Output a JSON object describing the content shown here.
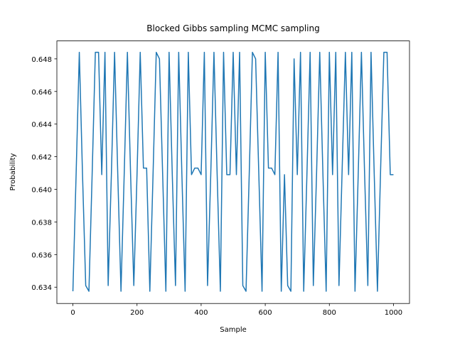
{
  "chart_data": {
    "type": "line",
    "title": "Blocked Gibbs sampling MCMC sampling",
    "x_label": "Sample",
    "y_label": "Probability",
    "xlim": [
      -50,
      1050
    ],
    "xticks": [
      0,
      200,
      400,
      600,
      800,
      1000
    ],
    "ylim": [
      0.633,
      0.6491
    ],
    "yticks": [
      0.634,
      0.636,
      0.638,
      {
        "value": 0.64,
        "label": "0.640"
      },
      0.642,
      0.644,
      0.646,
      0.648
    ],
    "x": [
      0,
      10,
      20,
      30,
      40,
      50,
      60,
      70,
      80,
      90,
      100,
      110,
      120,
      130,
      140,
      150,
      160,
      170,
      180,
      190,
      200,
      210,
      220,
      230,
      240,
      250,
      260,
      270,
      280,
      290,
      300,
      310,
      320,
      330,
      340,
      350,
      360,
      370,
      380,
      390,
      400,
      410,
      420,
      430,
      440,
      450,
      460,
      470,
      480,
      490,
      500,
      510,
      520,
      530,
      540,
      550,
      560,
      570,
      580,
      590,
      600,
      610,
      620,
      630,
      640,
      650,
      660,
      670,
      680,
      690,
      700,
      710,
      720,
      730,
      740,
      750,
      760,
      770,
      780,
      790,
      800,
      810,
      820,
      830,
      840,
      850,
      860,
      870,
      880,
      890,
      900,
      910,
      920,
      930,
      940,
      950,
      960,
      970,
      980,
      990,
      1000
    ],
    "series": [
      {
        "name": "Probability",
        "color": "#1f77b4",
        "values": [
          0.63375,
          0.6409,
          0.6484,
          0.6409,
          0.6341,
          0.63375,
          0.6409,
          0.6484,
          0.6484,
          0.6409,
          0.6484,
          0.6341,
          0.6409,
          0.6484,
          0.6409,
          0.63375,
          0.6409,
          0.6484,
          0.6409,
          0.6341,
          0.6409,
          0.6484,
          0.6413,
          0.6413,
          0.63375,
          0.6409,
          0.6484,
          0.648,
          0.6409,
          0.63375,
          0.6484,
          0.6409,
          0.6341,
          0.6484,
          0.6409,
          0.63375,
          0.6484,
          0.6409,
          0.6413,
          0.6413,
          0.6409,
          0.6484,
          0.6341,
          0.6409,
          0.6484,
          0.6409,
          0.63375,
          0.6484,
          0.6409,
          0.6409,
          0.6484,
          0.6409,
          0.6484,
          0.6341,
          0.63375,
          0.6409,
          0.6484,
          0.648,
          0.6409,
          0.63375,
          0.6484,
          0.6413,
          0.6413,
          0.6409,
          0.6484,
          0.63375,
          0.6409,
          0.6341,
          0.63375,
          0.648,
          0.6409,
          0.6484,
          0.63375,
          0.6409,
          0.6484,
          0.6341,
          0.6409,
          0.6484,
          0.6409,
          0.63375,
          0.6484,
          0.6409,
          0.6484,
          0.6341,
          0.6413,
          0.6484,
          0.6409,
          0.6484,
          0.63375,
          0.6409,
          0.6484,
          0.6409,
          0.6341,
          0.6484,
          0.6409,
          0.63375,
          0.6413,
          0.6484,
          0.6484,
          0.6409,
          0.6409
        ]
      }
    ]
  }
}
